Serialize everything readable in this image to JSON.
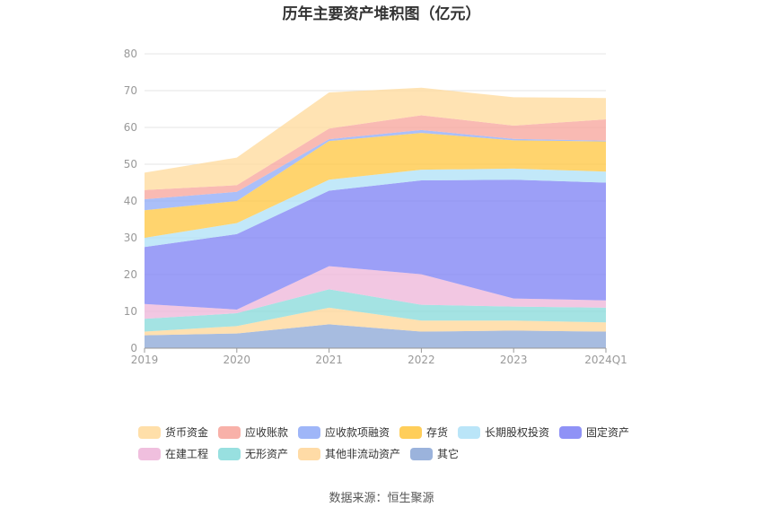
{
  "chart_data": {
    "type": "area",
    "stacked": true,
    "title": "历年主要资产堆积图（亿元）",
    "categories": [
      "2019",
      "2020",
      "2021",
      "2022",
      "2023",
      "2024Q1"
    ],
    "ylim": [
      0,
      80
    ],
    "yticks": [
      0,
      10,
      20,
      30,
      40,
      50,
      60,
      70,
      80
    ],
    "grid": true,
    "legend_position": "bottom",
    "series": [
      {
        "name": "其它",
        "color": "#8aa6d6",
        "values": [
          3.5,
          4.0,
          6.5,
          4.5,
          4.8,
          4.5
        ]
      },
      {
        "name": "其他非流动资产",
        "color": "#ffd596",
        "values": [
          1.0,
          2.0,
          4.5,
          3.0,
          2.7,
          2.5
        ]
      },
      {
        "name": "无形资产",
        "color": "#86dada",
        "values": [
          3.5,
          3.5,
          5.0,
          4.3,
          3.8,
          4.0
        ]
      },
      {
        "name": "在建工程",
        "color": "#edb4d8",
        "values": [
          4.0,
          1.0,
          6.3,
          8.3,
          2.2,
          2.0
        ]
      },
      {
        "name": "固定资产",
        "color": "#7b7ff4",
        "values": [
          15.5,
          20.5,
          20.5,
          25.5,
          32.3,
          32.0
        ]
      },
      {
        "name": "长期股权投资",
        "color": "#aee0f7",
        "values": [
          2.5,
          3.0,
          3.0,
          2.9,
          3.0,
          3.0
        ]
      },
      {
        "name": "存货",
        "color": "#ffc53d",
        "values": [
          7.5,
          6.0,
          10.5,
          10.0,
          7.7,
          8.2
        ]
      },
      {
        "name": "应收款项融资",
        "color": "#8ea9f7",
        "values": [
          3.0,
          2.5,
          0.5,
          0.8,
          0.4,
          0.2
        ]
      },
      {
        "name": "应收账款",
        "color": "#f7a39a",
        "values": [
          2.5,
          1.8,
          2.9,
          4.0,
          3.6,
          5.8
        ]
      },
      {
        "name": "货币资金",
        "color": "#ffd99a",
        "values": [
          4.7,
          7.5,
          9.8,
          7.5,
          7.7,
          5.8
        ]
      }
    ],
    "legend_order": [
      "货币资金",
      "应收账款",
      "应收款项融资",
      "存货",
      "长期股权投资",
      "固定资产",
      "在建工程",
      "无形资产",
      "其他非流动资产",
      "其它"
    ]
  },
  "source": "数据来源：恒生聚源"
}
